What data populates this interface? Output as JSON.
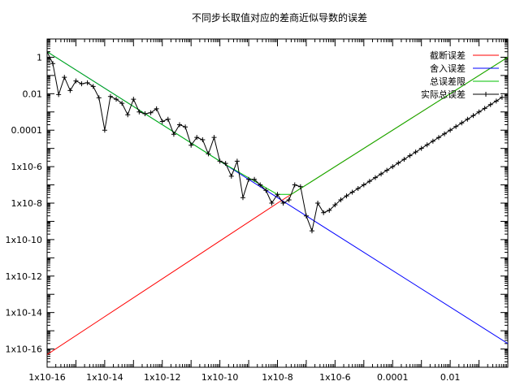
{
  "chart_data": {
    "type": "line",
    "title": "不同步长取值对应的差商近似导数的误差",
    "xlabel": "",
    "ylabel": "",
    "x_scale": "log",
    "y_scale": "log",
    "xlim": [
      1e-16,
      1
    ],
    "ylim": [
      1e-17,
      10
    ],
    "grid": false,
    "legend_position": "top-right",
    "x_ticks": [
      {
        "value": 1e-16,
        "label": "1x10-16"
      },
      {
        "value": 1e-14,
        "label": "1x10-14"
      },
      {
        "value": 1e-12,
        "label": "1x10-12"
      },
      {
        "value": 1e-10,
        "label": "1x10-10"
      },
      {
        "value": 1e-08,
        "label": "1x10-8"
      },
      {
        "value": 1e-06,
        "label": "1x10-6"
      },
      {
        "value": 0.0001,
        "label": "0.0001"
      },
      {
        "value": 0.01,
        "label": "0.01"
      }
    ],
    "y_ticks": [
      {
        "value": 1,
        "label": "1"
      },
      {
        "value": 0.01,
        "label": "0.01"
      },
      {
        "value": 0.0001,
        "label": "0.0001"
      },
      {
        "value": 1e-06,
        "label": "1x10-6"
      },
      {
        "value": 1e-08,
        "label": "1x10-8"
      },
      {
        "value": 1e-10,
        "label": "1x10-10"
      },
      {
        "value": 1e-12,
        "label": "1x10-12"
      },
      {
        "value": 1e-14,
        "label": "1x10-14"
      },
      {
        "value": 1e-16,
        "label": "1x10-16"
      }
    ],
    "series": [
      {
        "name": "截断误差",
        "color": "#ff0000",
        "style": "line",
        "x": [
          1e-16,
          1e-08,
          1
        ],
        "y": [
          5e-17,
          1e-08,
          1
        ]
      },
      {
        "name": "舍入误差",
        "color": "#0000ff",
        "style": "line",
        "x": [
          1e-16,
          1e-08,
          1
        ],
        "y": [
          2,
          2e-08,
          2e-16
        ]
      },
      {
        "name": "总误差限",
        "color": "#00c000",
        "style": "line",
        "x": [
          1e-16,
          1e-10,
          1e-08,
          3e-08,
          1e-06,
          0.0001,
          0.01,
          1
        ],
        "y": [
          2,
          2e-06,
          3e-08,
          3e-08,
          1e-06,
          0.0001,
          0.01,
          1
        ]
      },
      {
        "name": "实际总误差",
        "color": "#000000",
        "style": "linespoints",
        "x": [
          1e-16,
          1.58e-16,
          2.51e-16,
          3.98e-16,
          6.31e-16,
          1e-15,
          1.58e-15,
          2.51e-15,
          3.98e-15,
          6.31e-15,
          1e-14,
          1.58e-14,
          2.51e-14,
          3.98e-14,
          6.31e-14,
          1e-13,
          1.58e-13,
          2.51e-13,
          3.98e-13,
          6.31e-13,
          1e-12,
          1.58e-12,
          2.51e-12,
          3.98e-12,
          6.31e-12,
          1e-11,
          1.58e-11,
          2.51e-11,
          3.98e-11,
          6.31e-11,
          1e-10,
          1.58e-10,
          2.51e-10,
          3.98e-10,
          6.31e-10,
          1e-09,
          1.58e-09,
          2.51e-09,
          3.98e-09,
          6.31e-09,
          1e-08,
          1.58e-08,
          2.51e-08,
          3.98e-08,
          6.31e-08,
          1e-07,
          1.58e-07,
          2.51e-07,
          3.98e-07,
          6.31e-07,
          1e-06,
          1.58e-06,
          2.51e-06,
          3.98e-06,
          6.31e-06,
          1e-05,
          1.58e-05,
          2.51e-05,
          3.98e-05,
          6.31e-05,
          0.0001,
          0.000158,
          0.000251,
          0.000398,
          0.000631,
          0.001,
          0.00158,
          0.00251,
          0.00398,
          0.00631,
          0.01,
          0.0158,
          0.0251,
          0.0398,
          0.0631,
          0.1,
          0.158,
          0.251,
          0.398,
          0.631
        ],
        "y": [
          2,
          0.45,
          0.009,
          0.08,
          0.015,
          0.05,
          0.035,
          0.04,
          0.025,
          0.006,
          0.0001,
          0.007,
          0.005,
          0.003,
          0.0007,
          0.005,
          0.001,
          0.0008,
          0.0009,
          0.0015,
          0.0003,
          0.0004,
          6e-05,
          0.0002,
          0.00015,
          1.5e-05,
          4e-05,
          3e-05,
          5e-06,
          4e-05,
          2e-06,
          1.5e-06,
          3e-07,
          2e-06,
          2e-08,
          2e-07,
          2e-07,
          1e-07,
          5e-08,
          1e-08,
          3e-08,
          1e-08,
          1.5e-08,
          1e-07,
          8e-08,
          2e-09,
          3e-10,
          1e-08,
          3e-09,
          4e-09,
          8e-09,
          1.5e-08,
          2.5e-08,
          4e-08,
          6.3e-08,
          1e-07,
          1.58e-07,
          2.51e-07,
          3.98e-07,
          6.31e-07,
          1e-06,
          1.58e-06,
          2.51e-06,
          3.98e-06,
          6.31e-06,
          1e-05,
          1.58e-05,
          2.51e-05,
          3.98e-05,
          6.31e-05,
          0.0001,
          0.000158,
          0.000251,
          0.000398,
          0.000631,
          0.001,
          0.00158,
          0.00251,
          0.00398,
          0.00631
        ]
      }
    ]
  }
}
